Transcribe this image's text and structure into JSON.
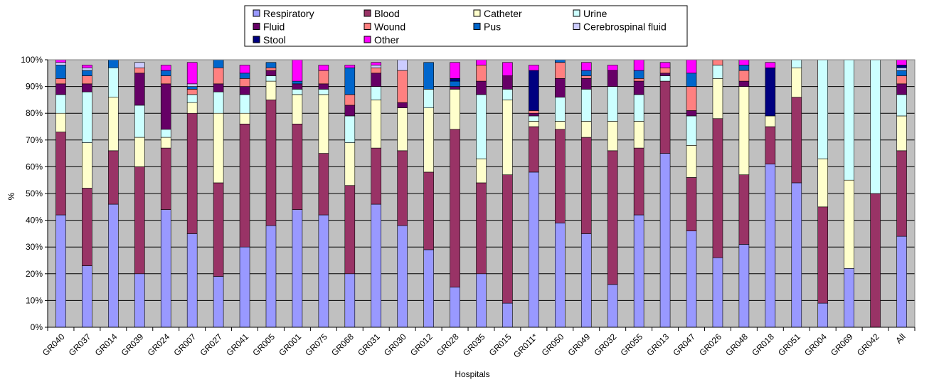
{
  "chart_data": {
    "type": "bar",
    "stacked": true,
    "xlabel": "Hospitals",
    "ylabel": "%",
    "ylim": [
      0,
      100
    ],
    "yticks": [
      "0%",
      "10%",
      "20%",
      "30%",
      "40%",
      "50%",
      "60%",
      "70%",
      "80%",
      "90%",
      "100%"
    ],
    "grid": true,
    "legend_position": "top",
    "categories": [
      "GR040",
      "GR037",
      "GR014",
      "GR039",
      "GR024",
      "GR007",
      "GR027",
      "GR041",
      "GR005",
      "GR001",
      "GR075",
      "GR068",
      "GR031",
      "GR030",
      "GR012",
      "GR028",
      "GR035",
      "GR015",
      "GR011*",
      "GR050",
      "GR049",
      "GR032",
      "GR055",
      "GR013",
      "GR047",
      "GR026",
      "GR048",
      "GR018",
      "GR051",
      "GR004",
      "GR069",
      "GR042",
      "All"
    ],
    "series": [
      {
        "name": "Respiratory",
        "color": "#9999ff",
        "values": [
          42,
          23,
          46,
          20,
          44,
          35,
          19,
          30,
          38,
          44,
          42,
          20,
          46,
          38,
          29,
          15,
          20,
          9,
          58,
          39,
          35,
          16,
          42,
          65,
          36,
          26,
          31,
          61,
          54,
          9,
          22,
          0,
          34
        ]
      },
      {
        "name": "Blood",
        "color": "#993366",
        "values": [
          31,
          29,
          20,
          40,
          23,
          45,
          35,
          46,
          47,
          32,
          23,
          33,
          21,
          28,
          29,
          59,
          34,
          48,
          17,
          35,
          36,
          50,
          25,
          27,
          20,
          52,
          26,
          14,
          32,
          36,
          0,
          50,
          32
        ]
      },
      {
        "name": "Catheter",
        "color": "#ffffcc",
        "values": [
          7,
          17,
          20,
          11,
          4,
          4,
          26,
          4,
          7,
          11,
          22,
          16,
          18,
          16,
          24,
          15,
          9,
          28,
          2,
          3,
          6,
          11,
          10,
          0,
          12,
          15,
          33,
          4,
          11,
          18,
          33,
          0,
          13
        ]
      },
      {
        "name": "Urine",
        "color": "#ccffff",
        "values": [
          7,
          19,
          11,
          12,
          3,
          3,
          8,
          7,
          2,
          2,
          2,
          10,
          5,
          0,
          7,
          0,
          24,
          4,
          2,
          9,
          12,
          13,
          10,
          2,
          11,
          5,
          0,
          0,
          3,
          37,
          45,
          50,
          8
        ]
      },
      {
        "name": "Fluid",
        "color": "#660066",
        "values": [
          4,
          3,
          0,
          12,
          17,
          0,
          3,
          3,
          2,
          2,
          2,
          4,
          5,
          2,
          0,
          1,
          5,
          5,
          1,
          7,
          4,
          6,
          5,
          1,
          2,
          0,
          2,
          0,
          0,
          0,
          0,
          0,
          4
        ]
      },
      {
        "name": "Wound",
        "color": "#ff8080",
        "values": [
          2,
          3,
          0,
          2,
          3,
          2,
          6,
          3,
          1,
          0,
          5,
          4,
          2,
          12,
          0,
          0,
          6,
          0,
          1,
          6,
          1,
          0,
          1,
          2,
          9,
          2,
          4,
          0,
          0,
          0,
          0,
          0,
          3
        ]
      },
      {
        "name": "Pus",
        "color": "#0066cc",
        "values": [
          5,
          2,
          3,
          0,
          2,
          1,
          3,
          2,
          2,
          1,
          0,
          10,
          0,
          0,
          10,
          2,
          0,
          0,
          0,
          1,
          2,
          0,
          3,
          0,
          5,
          0,
          2,
          0,
          0,
          0,
          0,
          0,
          2
        ]
      },
      {
        "name": "Cerebrospinal fluid",
        "color": "#ccccff",
        "values": [
          1,
          1,
          0,
          2,
          0,
          1,
          0,
          0,
          0,
          0,
          0,
          0,
          1,
          4,
          0,
          0,
          0,
          0,
          0,
          0,
          0,
          0,
          0,
          0,
          0,
          0,
          0,
          0,
          0,
          0,
          0,
          0,
          1
        ]
      },
      {
        "name": "Stool",
        "color": "#000080",
        "values": [
          0,
          0,
          0,
          0,
          0,
          0,
          0,
          0,
          0,
          0,
          0,
          0,
          0,
          0,
          0,
          1,
          0,
          0,
          15,
          0,
          0,
          0,
          0,
          0,
          0,
          0,
          0,
          18,
          0,
          0,
          0,
          0,
          1
        ]
      },
      {
        "name": "Other",
        "color": "#ff00ff",
        "values": [
          1,
          1,
          0,
          0,
          2,
          8,
          0,
          3,
          0,
          8,
          2,
          1,
          1,
          0,
          0,
          6,
          2,
          5,
          2,
          0,
          3,
          2,
          4,
          2,
          5,
          0,
          2,
          2,
          0,
          0,
          0,
          0,
          2
        ]
      }
    ]
  },
  "colors": {
    "plot_background": "#c0c0c0",
    "gridline": "#000000",
    "bar_outline": "#000000"
  }
}
